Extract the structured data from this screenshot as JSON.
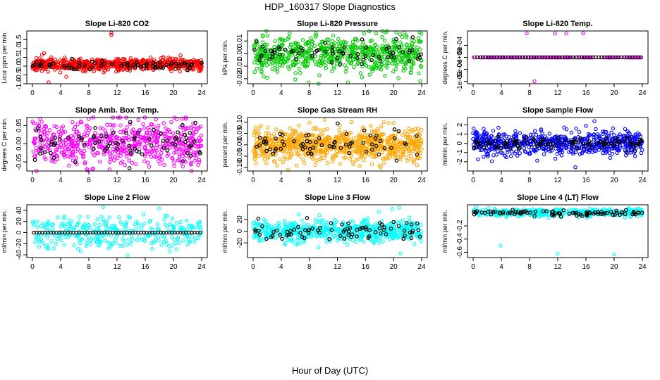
{
  "figure": {
    "title": "HDP_160317  Slope Diagnostics",
    "xlabel": "Hour of Day (UTC)"
  },
  "chart_data": [
    {
      "type": "scatter",
      "title": "Slope Li-820 CO2",
      "ylabel": "Licor ppm per min.",
      "color": "#ff0000",
      "xlim": [
        0,
        24
      ],
      "xticks": [
        "0",
        "4",
        "8",
        "12",
        "16",
        "20",
        "24"
      ],
      "ylim": [
        -1.0,
        2.0
      ],
      "yticks": [
        -1.0,
        -0.5,
        0.0,
        0.5,
        1.0,
        1.5
      ],
      "ytick_labels": [
        "-1.0",
        "-0.5",
        "0.0",
        "0.5",
        "1.0",
        "1.5"
      ],
      "gen": {
        "mode": "noise",
        "center": 0.1,
        "spread": 0.18,
        "n": 650,
        "seed": 11,
        "black_n": 70,
        "black_center": 0.05,
        "black_spread": 0.12
      },
      "outliers": [
        [
          11.2,
          1.9
        ],
        [
          11.2,
          1.78
        ],
        [
          2.3,
          -0.92
        ],
        [
          4.8,
          -0.6
        ]
      ]
    },
    {
      "type": "scatter",
      "title": "Slope Li-820 Pressure",
      "ylabel": "kPa per min.",
      "color": "#00cc00",
      "xlim": [
        0,
        24
      ],
      "xticks": [
        "0",
        "4",
        "8",
        "12",
        "16",
        "20",
        "24"
      ],
      "ylim": [
        -0.024,
        0.018
      ],
      "yticks": [
        -0.02,
        -0.01,
        0.0,
        0.01
      ],
      "ytick_labels": [
        "-0.02",
        "-0.01",
        "0.00",
        "0.01"
      ],
      "gen": {
        "mode": "noise",
        "center": 0.0,
        "spread": 0.007,
        "n": 650,
        "seed": 23,
        "black_n": 70,
        "black_center": 0.0,
        "black_spread": 0.005
      },
      "outliers": [
        [
          7.9,
          -0.023
        ],
        [
          13.5,
          -0.023
        ],
        [
          23.8,
          -0.022
        ],
        [
          1.5,
          -0.018
        ],
        [
          23.7,
          0.017
        ],
        [
          5.1,
          0.013
        ]
      ]
    },
    {
      "type": "scatter",
      "title": "Slope Li-820 Temp.",
      "ylabel": "degrees C per min.",
      "color": "#ff00ff",
      "xlim": [
        0,
        24
      ],
      "xticks": [
        "0",
        "4",
        "8",
        "12",
        "16",
        "20",
        "24"
      ],
      "ylim": [
        -0.0011,
        0.0011
      ],
      "yticks": [
        -0.001,
        -0.0005,
        0.0,
        0.0005
      ],
      "ytick_labels": [
        "-1e-03",
        "-5e-04",
        "0e+00",
        "5e-04"
      ],
      "gen": {
        "mode": "line",
        "center": 0.0,
        "spread": 0.0,
        "n": 120,
        "seed": 31,
        "black_n": 60,
        "black_center": 0.0,
        "black_spread": 0.0
      },
      "outliers": [
        [
          7.6,
          0.001
        ],
        [
          11.6,
          0.001
        ],
        [
          13.2,
          0.001
        ],
        [
          15.6,
          0.001
        ],
        [
          8.7,
          -0.001
        ],
        [
          0.1,
          0.0
        ]
      ]
    },
    {
      "type": "scatter",
      "title": "Slope Amb. Box Temp.",
      "ylabel": "degrees C per min.",
      "color": "#ff00ff",
      "xlim": [
        0,
        24
      ],
      "xticks": [
        "0",
        "4",
        "8",
        "12",
        "16",
        "20",
        "24"
      ],
      "ylim": [
        -0.075,
        0.072
      ],
      "yticks": [
        -0.05,
        0.0,
        0.05
      ],
      "ytick_labels": [
        "-0.05",
        "0.00",
        "0.05"
      ],
      "gen": {
        "mode": "noise",
        "center": 0.0,
        "spread": 0.03,
        "n": 600,
        "seed": 41,
        "black_n": 80,
        "black_center": 0.0,
        "black_spread": 0.025
      },
      "outliers": [
        [
          8.0,
          0.068
        ],
        [
          20.5,
          0.067
        ],
        [
          7.8,
          -0.073
        ],
        [
          23.5,
          -0.058
        ]
      ]
    },
    {
      "type": "scatter",
      "title": "Slope Gas Stream RH",
      "ylabel": "percent per min.",
      "color": "#ffa500",
      "xlim": [
        0,
        24
      ],
      "xticks": [
        "0",
        "4",
        "8",
        "12",
        "16",
        "20",
        "24"
      ],
      "ylim": [
        -0.115,
        0.12
      ],
      "yticks": [
        -0.1,
        -0.05,
        0.0,
        0.05,
        0.1
      ],
      "ytick_labels": [
        "-0.10",
        "-0.05",
        "0.00",
        "0.05",
        "0.10"
      ],
      "gen": {
        "mode": "noise",
        "center": 0.0,
        "spread": 0.035,
        "n": 800,
        "seed": 53,
        "black_n": 70,
        "black_center": 0.0,
        "black_spread": 0.03
      },
      "outliers": [
        [
          3.4,
          -0.09
        ],
        [
          5.0,
          -0.11
        ],
        [
          14.0,
          0.1
        ],
        [
          10.2,
          0.11
        ],
        [
          18.6,
          0.1
        ]
      ]
    },
    {
      "type": "scatter",
      "title": "Slope Sample Flow",
      "ylabel": "ml/min per min.",
      "color": "#0000ff",
      "xlim": [
        0,
        24
      ],
      "xticks": [
        "0",
        "4",
        "8",
        "12",
        "16",
        "20",
        "24"
      ],
      "ylim": [
        -3.0,
        2.8
      ],
      "yticks": [
        -2,
        -1,
        0,
        1,
        2
      ],
      "ytick_labels": [
        "-2",
        "-1",
        "0",
        "1",
        "2"
      ],
      "gen": {
        "mode": "noise",
        "center": 0.0,
        "spread": 0.6,
        "n": 600,
        "seed": 67,
        "black_n": 110,
        "black_center": 0.0,
        "black_spread": 0.35
      },
      "outliers": [
        [
          17.2,
          2.4
        ],
        [
          14.5,
          -2.6
        ],
        [
          0.0,
          1.1
        ],
        [
          16.0,
          1.9
        ]
      ]
    },
    {
      "type": "scatter",
      "title": "Slope Line 2 Flow",
      "ylabel": "ml/min per min.",
      "color": "#00ffff",
      "xlim": [
        0,
        24
      ],
      "xticks": [
        "0",
        "4",
        "8",
        "12",
        "16",
        "20",
        "24"
      ],
      "ylim": [
        -45,
        50
      ],
      "yticks": [
        -40,
        -20,
        0,
        20,
        40
      ],
      "ytick_labels": [
        "-40",
        "-20",
        "0",
        "20",
        "40"
      ],
      "gen": {
        "mode": "noise",
        "center": 0.0,
        "spread": 14,
        "n": 320,
        "seed": 79,
        "black_n": 0,
        "black_center": 0.0,
        "black_spread": 0.0,
        "black_line": true
      },
      "outliers": [
        [
          10.0,
          46
        ],
        [
          13.5,
          -42
        ]
      ]
    },
    {
      "type": "scatter",
      "title": "Slope Line 3 Flow",
      "ylabel": "ml/min per min.",
      "color": "#00ffff",
      "xlim": [
        0,
        24
      ],
      "xticks": [
        "0",
        "4",
        "8",
        "12",
        "16",
        "20",
        "24"
      ],
      "ylim": [
        -45,
        45
      ],
      "yticks": [
        -20,
        0,
        20
      ],
      "ytick_labels": [
        "-20",
        "0",
        "20"
      ],
      "gen": {
        "mode": "noise",
        "center": 0.0,
        "spread": 9,
        "n": 600,
        "seed": 89,
        "black_n": 80,
        "black_center": 0.0,
        "black_spread": 8
      },
      "outliers": [
        [
          21.0,
          -38
        ],
        [
          20.8,
          40
        ],
        [
          19.8,
          38
        ]
      ]
    },
    {
      "type": "scatter",
      "title": "Slope Line 4 (LT) Flow",
      "ylabel": "ml/min per min.",
      "color": "#00ffff",
      "xlim": [
        0,
        24
      ],
      "xticks": [
        "0",
        "4",
        "8",
        "12",
        "16",
        "20",
        "24"
      ],
      "ylim": [
        -0.68,
        0.12
      ],
      "yticks": [
        -0.6,
        -0.4,
        -0.2
      ],
      "ytick_labels": [
        "-0.6",
        "-0.4",
        "-0.2"
      ],
      "gen": {
        "mode": "noise",
        "center": 0.0,
        "spread": 0.03,
        "n": 400,
        "seed": 97,
        "black_n": 90,
        "black_center": 0.0,
        "black_spread": 0.025
      },
      "outliers": [
        [
          3.9,
          -0.5
        ],
        [
          12.0,
          -0.62
        ],
        [
          20.0,
          -0.63
        ],
        [
          23.4,
          0.06
        ]
      ]
    }
  ]
}
